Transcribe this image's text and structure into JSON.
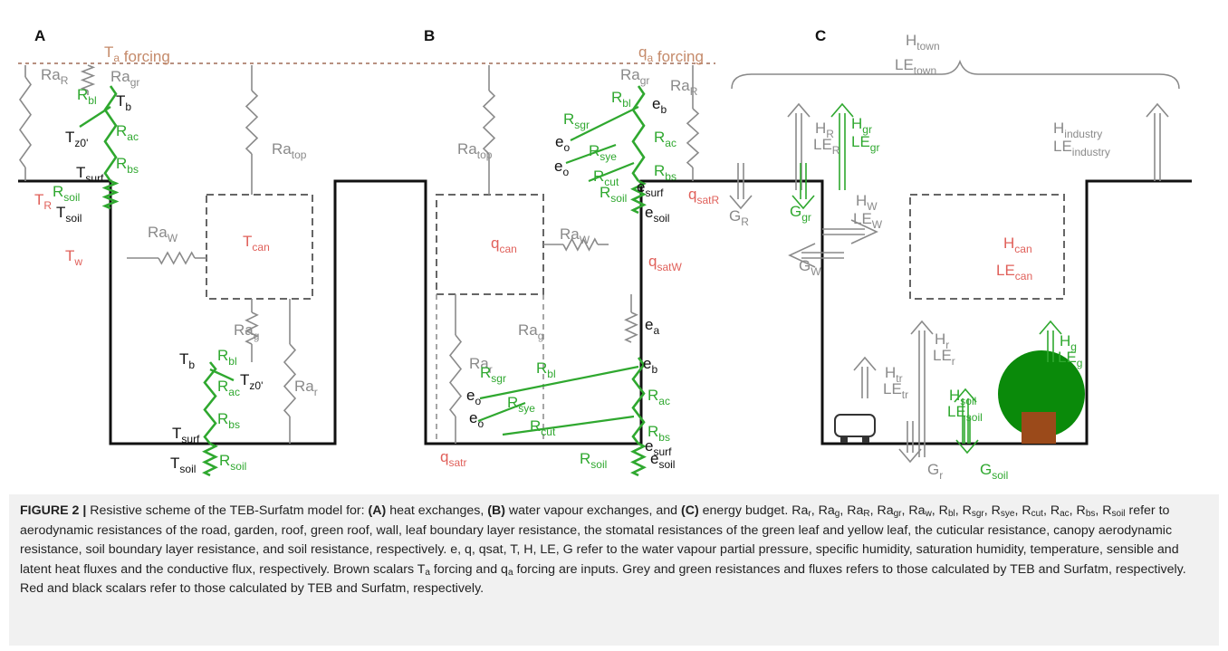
{
  "figure": {
    "panels": [
      {
        "letter": "A",
        "forcing": [
          "T",
          {
            "sub": "a"
          },
          " forcing"
        ],
        "labels": [
          [
            "Ra",
            {
              "sub": "R"
            }
          ],
          [
            "Ra",
            {
              "sub": "gr"
            }
          ],
          [
            "R",
            {
              "sub": "bl"
            }
          ],
          [
            "T",
            {
              "sub": "b"
            }
          ],
          [
            "T",
            {
              "sub": "z0'"
            }
          ],
          [
            "R",
            {
              "sub": "ac"
            }
          ],
          [
            "R",
            {
              "sub": "bs"
            }
          ],
          [
            "T",
            {
              "sub": "surf"
            }
          ],
          [
            "T",
            {
              "sub": "R"
            }
          ],
          [
            "R",
            {
              "sub": "soil"
            }
          ],
          [
            "T",
            {
              "sub": "soil"
            }
          ],
          [
            "Ra",
            {
              "sub": "top"
            }
          ],
          [
            "Ra",
            {
              "sub": "W"
            }
          ],
          [
            "T",
            {
              "sub": "w"
            }
          ],
          [
            "T",
            {
              "sub": "can"
            }
          ],
          [
            "Ra",
            {
              "sub": "g"
            }
          ],
          [
            "T",
            {
              "sub": "b"
            }
          ],
          [
            "R",
            {
              "sub": "bl"
            }
          ],
          [
            "T",
            {
              "sub": "z0'"
            }
          ],
          [
            "R",
            {
              "sub": "ac"
            }
          ],
          [
            "R",
            {
              "sub": "bs"
            }
          ],
          [
            "Ra",
            {
              "sub": "r"
            }
          ],
          [
            "T",
            {
              "sub": "surf"
            }
          ],
          [
            "T",
            {
              "sub": "soil"
            }
          ],
          [
            "R",
            {
              "sub": "soil"
            }
          ]
        ]
      },
      {
        "letter": "B",
        "forcing": [
          "q",
          {
            "sub": "a"
          },
          " forcing"
        ],
        "labels": [
          [
            "Ra",
            {
              "sub": "top"
            }
          ],
          [
            "Ra",
            {
              "sub": "gr"
            }
          ],
          [
            "Ra",
            {
              "sub": "R"
            }
          ],
          [
            "R",
            {
              "sub": "sgr"
            }
          ],
          [
            "R",
            {
              "sub": "bl"
            }
          ],
          [
            "e",
            {
              "sub": "b"
            }
          ],
          [
            "e",
            {
              "sub": "o"
            }
          ],
          [
            "e",
            {
              "sub": "o"
            }
          ],
          [
            "R",
            {
              "sub": "sye"
            }
          ],
          [
            "R",
            {
              "sub": "ac"
            }
          ],
          [
            "R",
            {
              "sub": "cut"
            }
          ],
          [
            "R",
            {
              "sub": "bs"
            }
          ],
          [
            "e",
            {
              "sub": "surf"
            }
          ],
          [
            "R",
            {
              "sub": "soil"
            }
          ],
          [
            "q",
            {
              "sub": "satR"
            }
          ],
          [
            "e",
            {
              "sub": "soil"
            }
          ],
          [
            "q",
            {
              "sub": "can"
            }
          ],
          [
            "Ra",
            {
              "sub": "W"
            }
          ],
          [
            "q",
            {
              "sub": "satW"
            }
          ],
          [
            "Ra",
            {
              "sub": "g"
            }
          ],
          [
            "e",
            {
              "sub": "a"
            }
          ],
          [
            "Ra",
            {
              "sub": "r"
            }
          ],
          [
            "R",
            {
              "sub": "sgr"
            }
          ],
          [
            "R",
            {
              "sub": "bl"
            }
          ],
          [
            "e",
            {
              "sub": "b"
            }
          ],
          [
            "e",
            {
              "sub": "o"
            }
          ],
          [
            "e",
            {
              "sub": "o"
            }
          ],
          [
            "R",
            {
              "sub": "sye"
            }
          ],
          [
            "R",
            {
              "sub": "ac"
            }
          ],
          [
            "R",
            {
              "sub": "cut"
            }
          ],
          [
            "R",
            {
              "sub": "bs"
            }
          ],
          [
            "e",
            {
              "sub": "surf"
            }
          ],
          [
            "q",
            {
              "sub": "satr"
            }
          ],
          [
            "R",
            {
              "sub": "soil"
            }
          ],
          [
            "e",
            {
              "sub": "soil"
            }
          ]
        ]
      },
      {
        "letter": "C",
        "labels": [
          [
            "H",
            {
              "sub": "town"
            }
          ],
          [
            "LE",
            {
              "sub": "town"
            }
          ],
          [
            "H",
            {
              "sub": "R"
            }
          ],
          [
            "LE",
            {
              "sub": "R"
            }
          ],
          [
            "H",
            {
              "sub": "gr"
            }
          ],
          [
            "LE",
            {
              "sub": "gr"
            }
          ],
          [
            "H",
            {
              "sub": "industry"
            }
          ],
          [
            "LE",
            {
              "sub": "industry"
            }
          ],
          [
            "G",
            {
              "sub": "R"
            }
          ],
          [
            "G",
            {
              "sub": "gr"
            }
          ],
          [
            "H",
            {
              "sub": "W"
            }
          ],
          [
            "LE",
            {
              "sub": "W"
            }
          ],
          [
            "G",
            {
              "sub": "W"
            }
          ],
          [
            "H",
            {
              "sub": "can"
            }
          ],
          [
            "LE",
            {
              "sub": "can"
            }
          ],
          [
            "H",
            {
              "sub": "r"
            }
          ],
          [
            "LE",
            {
              "sub": "r"
            }
          ],
          [
            "H",
            {
              "sub": "g"
            }
          ],
          [
            "LE",
            {
              "sub": "g"
            }
          ],
          [
            "H",
            {
              "sub": "tr"
            }
          ],
          [
            "LE",
            {
              "sub": "tr"
            }
          ],
          [
            "H",
            {
              "sub": "soil"
            }
          ],
          [
            "LE",
            {
              "sub": "soil"
            }
          ],
          [
            "G",
            {
              "sub": "r"
            }
          ],
          [
            "G",
            {
              "sub": "soil"
            }
          ]
        ]
      }
    ],
    "caption": [
      {
        "bold": "FIGURE 2 |"
      },
      " Resistive scheme of the TEB-Surfatm model for: ",
      {
        "bold": "(A)"
      },
      " heat exchanges, ",
      {
        "bold": "(B)"
      },
      " water vapour exchanges, and ",
      {
        "bold": "(C)"
      },
      " energy budget. Ra",
      {
        "sub": "r"
      },
      ", Ra",
      {
        "sub": "g"
      },
      ", Ra",
      {
        "sub": "R"
      },
      ", Ra",
      {
        "sub": "gr"
      },
      ", Ra",
      {
        "sub": "w"
      },
      ", R",
      {
        "sub": "bl"
      },
      ", R",
      {
        "sub": "sgr"
      },
      ", R",
      {
        "sub": "sye"
      },
      ", R",
      {
        "sub": "cut"
      },
      ", R",
      {
        "sub": "ac"
      },
      ", R",
      {
        "sub": "bs"
      },
      ", R",
      {
        "sub": "soil"
      },
      " refer to aerodynamic resistances of the road, garden, roof, green roof, wall, leaf boundary layer resistance, the stomatal resistances of the green leaf and yellow leaf, the cuticular resistance, canopy aerodynamic resistance, soil boundary layer resistance, and soil resistance, respectively. e, q, qsat, T, H, LE, G refer to the water vapour partial pressure, specific humidity, saturation humidity, temperature, sensible and latent heat fluxes and the conductive flux, respectively. Brown scalars T",
      {
        "sub": "a"
      },
      " forcing and q",
      {
        "sub": "a"
      },
      " forcing are inputs. Grey and green resistances and fluxes refers to those calculated by TEB and Surfatm, respectively. Red and black scalars refer to those calculated by TEB and Surfatm, respectively."
    ]
  }
}
